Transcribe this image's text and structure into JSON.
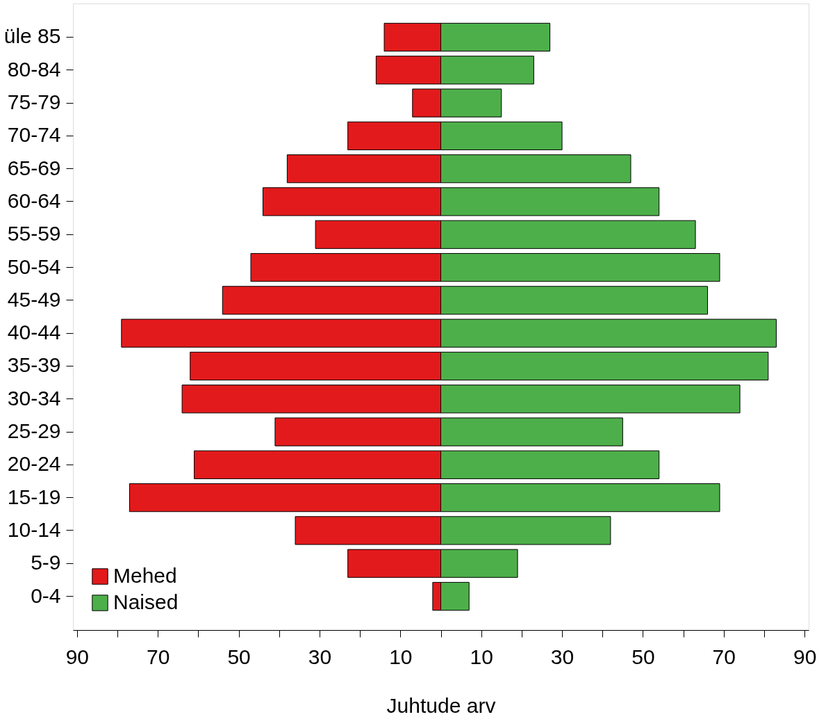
{
  "chart_data": {
    "type": "bar",
    "orientation": "horizontal",
    "xlabel": "Juhtude arv",
    "categories": [
      "üle 85",
      "80-84",
      "75-79",
      "70-74",
      "65-69",
      "60-64",
      "55-59",
      "50-54",
      "45-49",
      "40-44",
      "35-39",
      "30-34",
      "25-29",
      "20-24",
      "15-19",
      "10-14",
      "5-9",
      "0-4"
    ],
    "series": [
      {
        "name": "Mehed",
        "color": "#e31a1c",
        "values": [
          -14,
          -16,
          -7,
          -23,
          -38,
          -44,
          -31,
          -47,
          -54,
          -79,
          -62,
          -64,
          -41,
          -61,
          -77,
          -36,
          -23,
          -2
        ]
      },
      {
        "name": "Naised",
        "color": "#4daf4a",
        "values": [
          27,
          23,
          15,
          30,
          47,
          54,
          63,
          69,
          66,
          83,
          81,
          74,
          45,
          54,
          69,
          42,
          19,
          7
        ]
      }
    ],
    "xlim": [
      -91,
      91
    ],
    "xticks": [
      {
        "value": -90,
        "label": "90"
      },
      {
        "value": -80,
        "label": null
      },
      {
        "value": -70,
        "label": "70"
      },
      {
        "value": -60,
        "label": null
      },
      {
        "value": -50,
        "label": "50"
      },
      {
        "value": -40,
        "label": null
      },
      {
        "value": -30,
        "label": "30"
      },
      {
        "value": -20,
        "label": null
      },
      {
        "value": -10,
        "label": "10"
      },
      {
        "value": 0,
        "label": null
      },
      {
        "value": 10,
        "label": "10"
      },
      {
        "value": 20,
        "label": null
      },
      {
        "value": 30,
        "label": "30"
      },
      {
        "value": 40,
        "label": null
      },
      {
        "value": 50,
        "label": "50"
      },
      {
        "value": 60,
        "label": null
      },
      {
        "value": 70,
        "label": "70"
      },
      {
        "value": 80,
        "label": null
      },
      {
        "value": 90,
        "label": "90"
      }
    ],
    "grid": false,
    "legend": "bottom left",
    "stacked": true
  }
}
